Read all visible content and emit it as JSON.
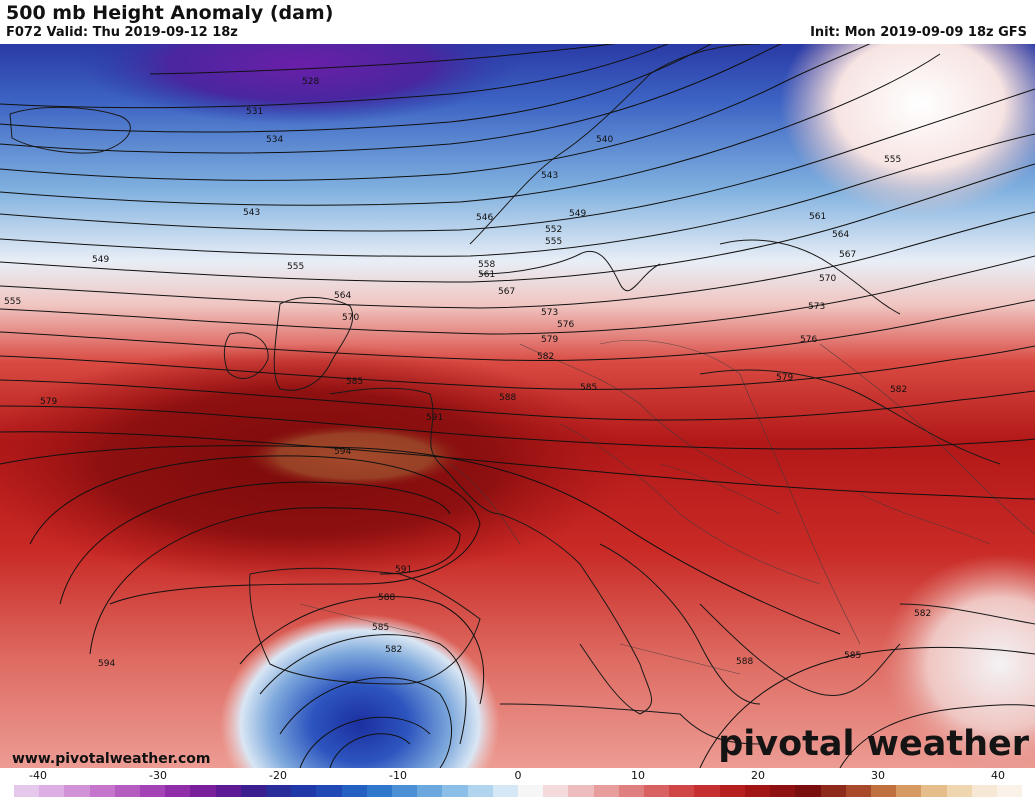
{
  "header": {
    "title": "500 mb Height Anomaly (dam)",
    "valid": "F072 Valid: Thu 2019-09-12 18z",
    "init": "Init: Mon 2019-09-09 18z GFS"
  },
  "footer": {
    "website": "www.pivotalweather.com",
    "brand": "pivotal weather"
  },
  "colorbar": {
    "ticks": [
      "-40",
      "-30",
      "-20",
      "-10",
      "0",
      "10",
      "20",
      "30",
      "40"
    ],
    "tick_values": [
      -40,
      -30,
      -20,
      -10,
      0,
      10,
      20,
      30,
      40
    ],
    "range": [
      -42,
      42
    ],
    "colors": [
      "#e6c8ec",
      "#dcaee3",
      "#d292d8",
      "#c576cc",
      "#b55cc0",
      "#a443b5",
      "#8f2ea8",
      "#7a1f9c",
      "#5e1a94",
      "#3b1f8f",
      "#2a2c9a",
      "#1f3aa8",
      "#2049b5",
      "#2460c2",
      "#2f78cc",
      "#4b90d5",
      "#6aa8de",
      "#8cbfe7",
      "#b1d4ef",
      "#d6e8f6",
      "#f6f6f6",
      "#f4dada",
      "#eebcbc",
      "#e89d9d",
      "#e07f7f",
      "#d86262",
      "#d04646",
      "#c62f2f",
      "#b71f1f",
      "#a31515",
      "#8e1010",
      "#7a0e0e",
      "#8e2a1c",
      "#a8492c",
      "#c0703f",
      "#d69a62",
      "#e6be8c",
      "#f0d6b0",
      "#f6e8d4",
      "#faf2e8"
    ]
  },
  "map": {
    "region": "Europe",
    "contour_labels": [
      {
        "text": "528"
      },
      {
        "text": "531"
      },
      {
        "text": "534"
      },
      {
        "text": "540"
      },
      {
        "text": "543"
      },
      {
        "text": "543"
      },
      {
        "text": "546"
      },
      {
        "text": "549"
      },
      {
        "text": "549"
      },
      {
        "text": "552"
      },
      {
        "text": "555"
      },
      {
        "text": "555"
      },
      {
        "text": "555"
      },
      {
        "text": "555"
      },
      {
        "text": "558"
      },
      {
        "text": "561"
      },
      {
        "text": "561"
      },
      {
        "text": "564"
      },
      {
        "text": "564"
      },
      {
        "text": "567"
      },
      {
        "text": "567"
      },
      {
        "text": "570"
      },
      {
        "text": "570"
      },
      {
        "text": "573"
      },
      {
        "text": "573"
      },
      {
        "text": "576"
      },
      {
        "text": "576"
      },
      {
        "text": "579"
      },
      {
        "text": "579"
      },
      {
        "text": "579"
      },
      {
        "text": "582"
      },
      {
        "text": "582"
      },
      {
        "text": "582"
      },
      {
        "text": "582"
      },
      {
        "text": "585"
      },
      {
        "text": "585"
      },
      {
        "text": "585"
      },
      {
        "text": "585"
      },
      {
        "text": "588"
      },
      {
        "text": "588"
      },
      {
        "text": "588"
      },
      {
        "text": "591"
      },
      {
        "text": "591"
      },
      {
        "text": "594"
      },
      {
        "text": "594"
      }
    ]
  }
}
